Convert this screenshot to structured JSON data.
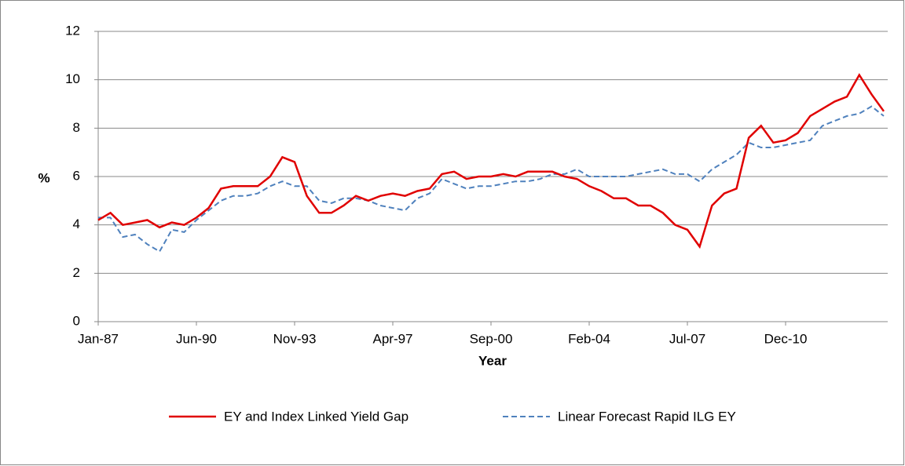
{
  "chart_data": {
    "type": "line",
    "x_label": "Year",
    "y_label": "%",
    "categories": [
      "Jan-87",
      null,
      null,
      null,
      null,
      null,
      null,
      null,
      "Jun-90",
      null,
      null,
      null,
      null,
      null,
      null,
      null,
      "Nov-93",
      null,
      null,
      null,
      null,
      null,
      null,
      null,
      "Apr-97",
      null,
      null,
      null,
      null,
      null,
      null,
      null,
      "Sep-00",
      null,
      null,
      null,
      null,
      null,
      null,
      null,
      "Feb-04",
      null,
      null,
      null,
      null,
      null,
      null,
      null,
      "Jul-07",
      null,
      null,
      null,
      null,
      null,
      null,
      null,
      "Dec-10",
      null,
      null,
      null,
      null,
      null,
      null,
      null,
      null
    ],
    "series": [
      {
        "name": "EY and Index Linked Yield Gap",
        "color": "#e00000",
        "dash": false,
        "values": [
          4.2,
          4.5,
          4.0,
          4.1,
          4.2,
          3.9,
          4.1,
          4.0,
          4.3,
          4.7,
          5.5,
          5.6,
          5.6,
          5.6,
          6.0,
          6.8,
          6.6,
          5.2,
          4.5,
          4.5,
          4.8,
          5.2,
          5.0,
          5.2,
          5.3,
          5.2,
          5.4,
          5.5,
          6.1,
          6.2,
          5.9,
          6.0,
          6.0,
          6.1,
          6.0,
          6.2,
          6.2,
          6.2,
          6.0,
          5.9,
          5.6,
          5.4,
          5.1,
          5.1,
          4.8,
          4.8,
          4.5,
          4.0,
          3.8,
          3.1,
          4.8,
          5.3,
          5.5,
          7.6,
          8.1,
          7.4,
          7.5,
          7.8,
          8.5,
          8.8,
          9.1,
          9.3,
          10.2,
          9.4,
          8.7
        ]
      },
      {
        "name": "Linear Forecast Rapid ILG EY",
        "color": "#4f81bd",
        "dash": true,
        "values": [
          4.3,
          4.3,
          3.5,
          3.6,
          3.2,
          2.9,
          3.8,
          3.7,
          4.2,
          4.6,
          5.0,
          5.2,
          5.2,
          5.3,
          5.6,
          5.8,
          5.6,
          5.6,
          5.0,
          4.9,
          5.1,
          5.1,
          5.0,
          4.8,
          4.7,
          4.6,
          5.1,
          5.3,
          5.9,
          5.7,
          5.5,
          5.6,
          5.6,
          5.7,
          5.8,
          5.8,
          5.9,
          6.1,
          6.1,
          6.3,
          6.0,
          6.0,
          6.0,
          6.0,
          6.1,
          6.2,
          6.3,
          6.1,
          6.1,
          5.8,
          6.3,
          6.6,
          6.9,
          7.4,
          7.2,
          7.2,
          7.3,
          7.4,
          7.5,
          8.1,
          8.3,
          8.5,
          8.6,
          8.9,
          8.5
        ]
      }
    ],
    "ylim": [
      0,
      12
    ],
    "yticks": [
      0,
      2,
      4,
      6,
      8,
      10,
      12
    ],
    "grid": true
  }
}
